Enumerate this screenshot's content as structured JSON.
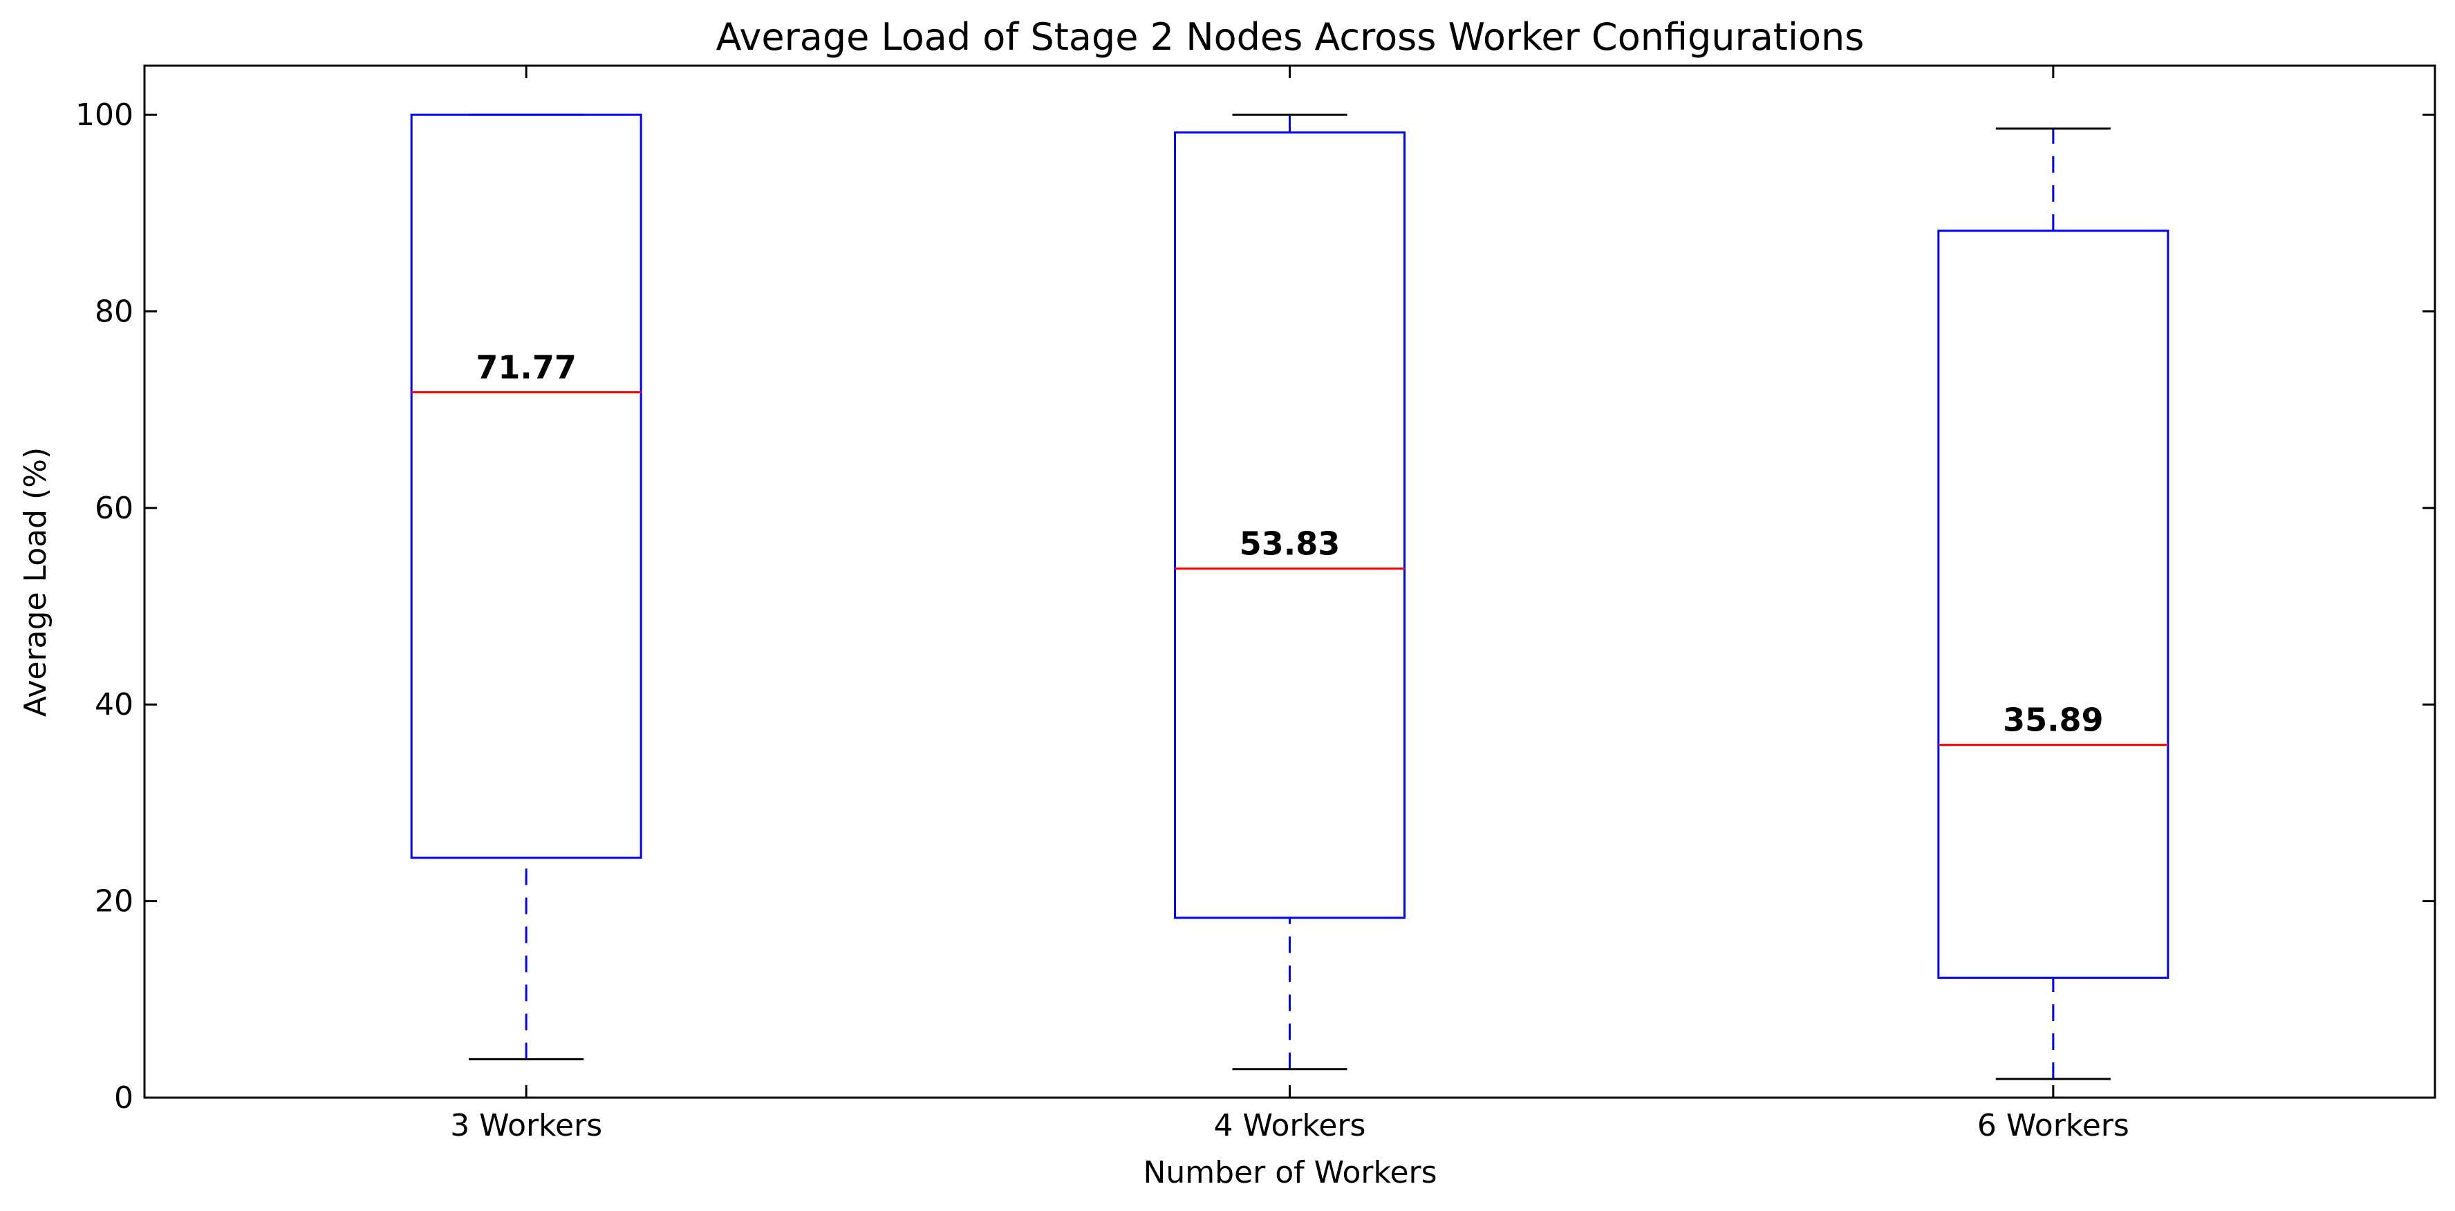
{
  "chart_data": {
    "type": "boxplot",
    "title": "Average Load of Stage 2 Nodes Across Worker Configurations",
    "xlabel": "Number of Workers",
    "ylabel": "Average Load (%)",
    "ylim": [
      0,
      105
    ],
    "yticks": [
      0,
      20,
      40,
      60,
      80,
      100
    ],
    "grid": false,
    "categories": [
      "3 Workers",
      "4 Workers",
      "6 Workers"
    ],
    "boxes": [
      {
        "label": "3 Workers",
        "whisker_low": 3.9,
        "q1": 24.4,
        "median": 71.77,
        "q3": 100.0,
        "whisker_high": 100.0,
        "median_label": "71.77"
      },
      {
        "label": "4 Workers",
        "whisker_low": 2.9,
        "q1": 18.3,
        "median": 53.83,
        "q3": 98.2,
        "whisker_high": 100.0,
        "median_label": "53.83"
      },
      {
        "label": "6 Workers",
        "whisker_low": 1.9,
        "q1": 12.2,
        "median": 35.89,
        "q3": 88.2,
        "whisker_high": 98.6,
        "median_label": "35.89"
      }
    ],
    "colors": {
      "box": "#0000ff",
      "median": "#ff0000",
      "whisker_cap": "#000000",
      "axes": "#000000"
    }
  }
}
